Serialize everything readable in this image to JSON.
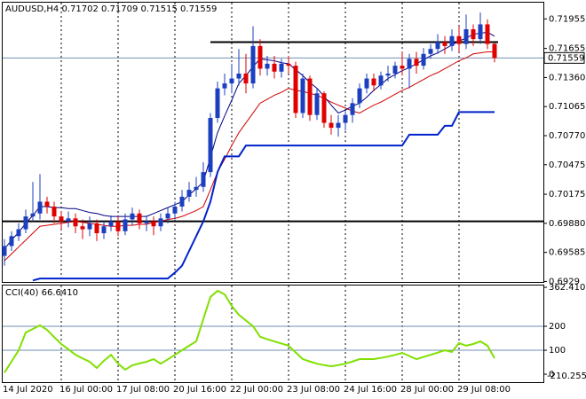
{
  "chart_data": [
    {
      "type": "candlestick",
      "title": "AUDUSD,H4  0.71702 0.71709 0.71515 0.71559",
      "categories": [
        "14 Jul 2020",
        null,
        null,
        null,
        null,
        null,
        null,
        null,
        "16 Jul 00:00",
        null,
        null,
        null,
        null,
        null,
        null,
        null,
        "17 Jul 08:00",
        null,
        null,
        null,
        null,
        null,
        null,
        null,
        "20 Jul 16:00",
        null,
        null,
        null,
        null,
        null,
        null,
        null,
        "22 Jul 00:00",
        null,
        null,
        null,
        null,
        null,
        null,
        null,
        "23 Jul 08:00",
        null,
        null,
        null,
        null,
        null,
        null,
        null,
        "24 Jul 16:00",
        null,
        null,
        null,
        null,
        null,
        null,
        null,
        "28 Jul 00:00",
        null,
        null,
        null,
        null,
        null,
        null,
        null,
        "29 Jul 08:00",
        null,
        null,
        null,
        null,
        null
      ],
      "open": [
        0.6955,
        0.6965,
        0.6975,
        0.6982,
        0.6995,
        0.6998,
        0.701,
        0.7005,
        0.6995,
        0.699,
        0.6993,
        0.6985,
        0.6982,
        0.6988,
        0.6978,
        0.6985,
        0.699,
        0.698,
        0.6992,
        0.6998,
        0.6988,
        0.699,
        0.6985,
        0.6993,
        0.6998,
        0.7005,
        0.7015,
        0.7022,
        0.7025,
        0.704,
        0.7095,
        0.7125,
        0.713,
        0.7135,
        0.714,
        0.713,
        0.7168,
        0.7145,
        0.715,
        0.7142,
        0.715,
        0.7148,
        0.71,
        0.7135,
        0.7098,
        0.712,
        0.709,
        0.7085,
        0.709,
        0.7098,
        0.711,
        0.7125,
        0.7135,
        0.7128,
        0.7138,
        0.714,
        0.7148,
        0.7145,
        0.7155,
        0.7148,
        0.716,
        0.7165,
        0.7172,
        0.7168,
        0.7178,
        0.717,
        0.7185,
        0.7175,
        0.719,
        0.71702
      ],
      "high": [
        0.6972,
        0.698,
        0.6988,
        0.7002,
        0.703,
        0.7038,
        0.7015,
        0.701,
        0.7,
        0.7,
        0.6998,
        0.6992,
        0.6995,
        0.6992,
        0.699,
        0.6996,
        0.6995,
        0.6998,
        0.7004,
        0.7002,
        0.6996,
        0.6995,
        0.6998,
        0.7004,
        0.701,
        0.7022,
        0.703,
        0.7035,
        0.705,
        0.71,
        0.7132,
        0.714,
        0.715,
        0.7165,
        0.716,
        0.7188,
        0.7175,
        0.7158,
        0.7158,
        0.7155,
        0.7158,
        0.7152,
        0.714,
        0.7138,
        0.7125,
        0.7122,
        0.7098,
        0.7098,
        0.7102,
        0.7115,
        0.713,
        0.714,
        0.714,
        0.7142,
        0.7148,
        0.7152,
        0.7162,
        0.716,
        0.7162,
        0.7166,
        0.717,
        0.718,
        0.7178,
        0.7185,
        0.7188,
        0.72,
        0.719,
        0.7202,
        0.7195,
        0.71709
      ],
      "low": [
        0.6945,
        0.696,
        0.697,
        0.6978,
        0.699,
        0.6992,
        0.6998,
        0.6988,
        0.6982,
        0.6984,
        0.6978,
        0.6972,
        0.6975,
        0.697,
        0.6972,
        0.698,
        0.6975,
        0.6976,
        0.6986,
        0.6982,
        0.698,
        0.6976,
        0.698,
        0.6988,
        0.6992,
        0.7,
        0.701,
        0.7015,
        0.702,
        0.7035,
        0.709,
        0.7118,
        0.712,
        0.7128,
        0.712,
        0.7125,
        0.7138,
        0.7138,
        0.7135,
        0.7136,
        0.714,
        0.7095,
        0.7095,
        0.7092,
        0.7093,
        0.7085,
        0.7078,
        0.7076,
        0.7082,
        0.709,
        0.7105,
        0.712,
        0.7122,
        0.7124,
        0.7132,
        0.7135,
        0.7138,
        0.7125,
        0.714,
        0.7144,
        0.7155,
        0.716,
        0.716,
        0.7163,
        0.7162,
        0.7165,
        0.7168,
        0.717,
        0.7165,
        0.71515
      ],
      "close": [
        0.6965,
        0.6975,
        0.6982,
        0.6995,
        0.6998,
        0.701,
        0.7005,
        0.6995,
        0.699,
        0.6993,
        0.6985,
        0.6982,
        0.6988,
        0.6978,
        0.6985,
        0.699,
        0.698,
        0.6992,
        0.6998,
        0.6988,
        0.699,
        0.6985,
        0.6993,
        0.6998,
        0.7005,
        0.7015,
        0.7022,
        0.7025,
        0.704,
        0.7095,
        0.7125,
        0.713,
        0.7135,
        0.714,
        0.713,
        0.7168,
        0.7145,
        0.715,
        0.7142,
        0.715,
        0.7148,
        0.71,
        0.7135,
        0.7098,
        0.712,
        0.709,
        0.7085,
        0.709,
        0.7098,
        0.711,
        0.7125,
        0.7135,
        0.7128,
        0.7138,
        0.714,
        0.7148,
        0.7145,
        0.7155,
        0.7148,
        0.716,
        0.7165,
        0.7172,
        0.7168,
        0.7178,
        0.717,
        0.7185,
        0.7175,
        0.719,
        0.717,
        0.71559
      ],
      "up_color": "#1c3fbf",
      "down_color": "#e00000",
      "series": [
        {
          "color": "#d00000",
          "width": 1,
          "values": [
            0.695,
            0.6957,
            0.6964,
            0.6971,
            0.6978,
            0.6985,
            0.6986,
            0.6987,
            0.6988,
            0.6989,
            0.699,
            0.6989,
            0.6988,
            0.6987,
            0.6986,
            0.6985,
            0.6985,
            0.6986,
            0.6986,
            0.6987,
            0.6987,
            0.6989,
            0.699,
            0.6992,
            0.6993,
            0.6995,
            0.6998,
            0.7001,
            0.7005,
            0.7022,
            0.704,
            0.7053,
            0.7067,
            0.708,
            0.709,
            0.71,
            0.711,
            0.7114,
            0.7118,
            0.7121,
            0.7125,
            0.7123,
            0.7122,
            0.712,
            0.7118,
            0.7115,
            0.7111,
            0.7108,
            0.7105,
            0.7102,
            0.71,
            0.7104,
            0.7108,
            0.7111,
            0.7115,
            0.7119,
            0.7123,
            0.7126,
            0.713,
            0.7134,
            0.7138,
            0.7141,
            0.7145,
            0.7149,
            0.7153,
            0.7156,
            0.716,
            0.7161,
            0.7162,
            0.7162
          ]
        },
        {
          "color": "#00007f",
          "width": 1,
          "values": [
            0.6962,
            0.6971,
            0.6979,
            0.6988,
            0.6996,
            0.7005,
            0.7005,
            0.7004,
            0.7004,
            0.7003,
            0.7003,
            0.7001,
            0.6999,
            0.6998,
            0.6996,
            0.6995,
            0.6995,
            0.6995,
            0.6995,
            0.6995,
            0.6995,
            0.6998,
            0.7001,
            0.7004,
            0.7007,
            0.701,
            0.7017,
            0.7023,
            0.703,
            0.7055,
            0.708,
            0.7097,
            0.7113,
            0.713,
            0.7138,
            0.7147,
            0.7155,
            0.7154,
            0.7153,
            0.7151,
            0.715,
            0.7144,
            0.7138,
            0.7131,
            0.7125,
            0.7117,
            0.7108,
            0.71,
            0.7103,
            0.7107,
            0.711,
            0.7116,
            0.7123,
            0.7129,
            0.7135,
            0.7139,
            0.7143,
            0.7146,
            0.715,
            0.7154,
            0.7158,
            0.7161,
            0.7165,
            0.7169,
            0.7173,
            0.7176,
            0.718,
            0.7181,
            0.7182,
            0.7178
          ]
        },
        {
          "color": "#0022cc",
          "width": 2,
          "values": [
            null,
            null,
            null,
            null,
            0.693,
            0.6932,
            0.6932,
            0.6932,
            0.6932,
            0.6932,
            0.6932,
            0.6932,
            0.6932,
            0.6932,
            0.6932,
            0.6932,
            0.6932,
            0.6932,
            0.6932,
            0.6932,
            0.6932,
            0.6932,
            0.6932,
            0.6932,
            0.6938,
            0.6945,
            0.696,
            0.6975,
            0.699,
            0.701,
            0.704,
            0.7056,
            0.7056,
            0.7056,
            0.7067,
            0.7067,
            0.7067,
            0.7067,
            0.7067,
            0.7067,
            0.7067,
            0.7067,
            0.7067,
            0.7067,
            0.7067,
            0.7067,
            0.7067,
            0.7067,
            0.7067,
            0.7067,
            0.7067,
            0.7067,
            0.7067,
            0.7067,
            0.7067,
            0.7067,
            0.7067,
            0.7078,
            0.7078,
            0.7078,
            0.7078,
            0.7078,
            0.7087,
            0.7087,
            0.7101,
            0.7101,
            0.7101,
            0.7101,
            0.7101,
            0.7101
          ]
        }
      ],
      "levels": [
        0.7172,
        0.699
      ],
      "ylim": [
        0.69285,
        0.7212
      ],
      "yticks": [
        0.71955,
        0.71655,
        {
          "value": 0.7136,
          "label": "0.71360"
        },
        0.71065,
        {
          "value": 0.7077,
          "label": "0.70770"
        },
        0.70475,
        0.70175,
        {
          "value": 0.6988,
          "label": "0.69880"
        },
        0.69585,
        0.6929
      ]
    },
    {
      "type": "line",
      "title": "CCI(40) 66.6410",
      "color": "#80e000",
      "values": [
        7,
        53,
        100,
        174,
        189,
        204,
        185,
        155,
        126,
        104,
        81,
        66,
        52,
        26,
        56,
        81,
        44,
        19,
        37,
        45,
        52,
        63,
        44,
        62,
        81,
        100,
        119,
        137,
        230,
        322,
        348,
        333,
        285,
        248,
        224,
        200,
        156,
        146,
        137,
        128,
        119,
        91,
        63,
        53,
        44,
        38,
        33,
        38,
        44,
        53,
        63,
        63,
        63,
        68,
        74,
        81,
        89,
        76,
        63,
        72,
        81,
        90,
        100,
        93,
        130,
        119,
        126,
        137,
        119,
        66.641
      ],
      "levels": [
        200,
        100
      ],
      "ylim": [
        -33,
        370
      ],
      "yticks": [
        362.4101,
        200,
        100,
        0
      ],
      "bottom_label": "-210.2554"
    }
  ]
}
